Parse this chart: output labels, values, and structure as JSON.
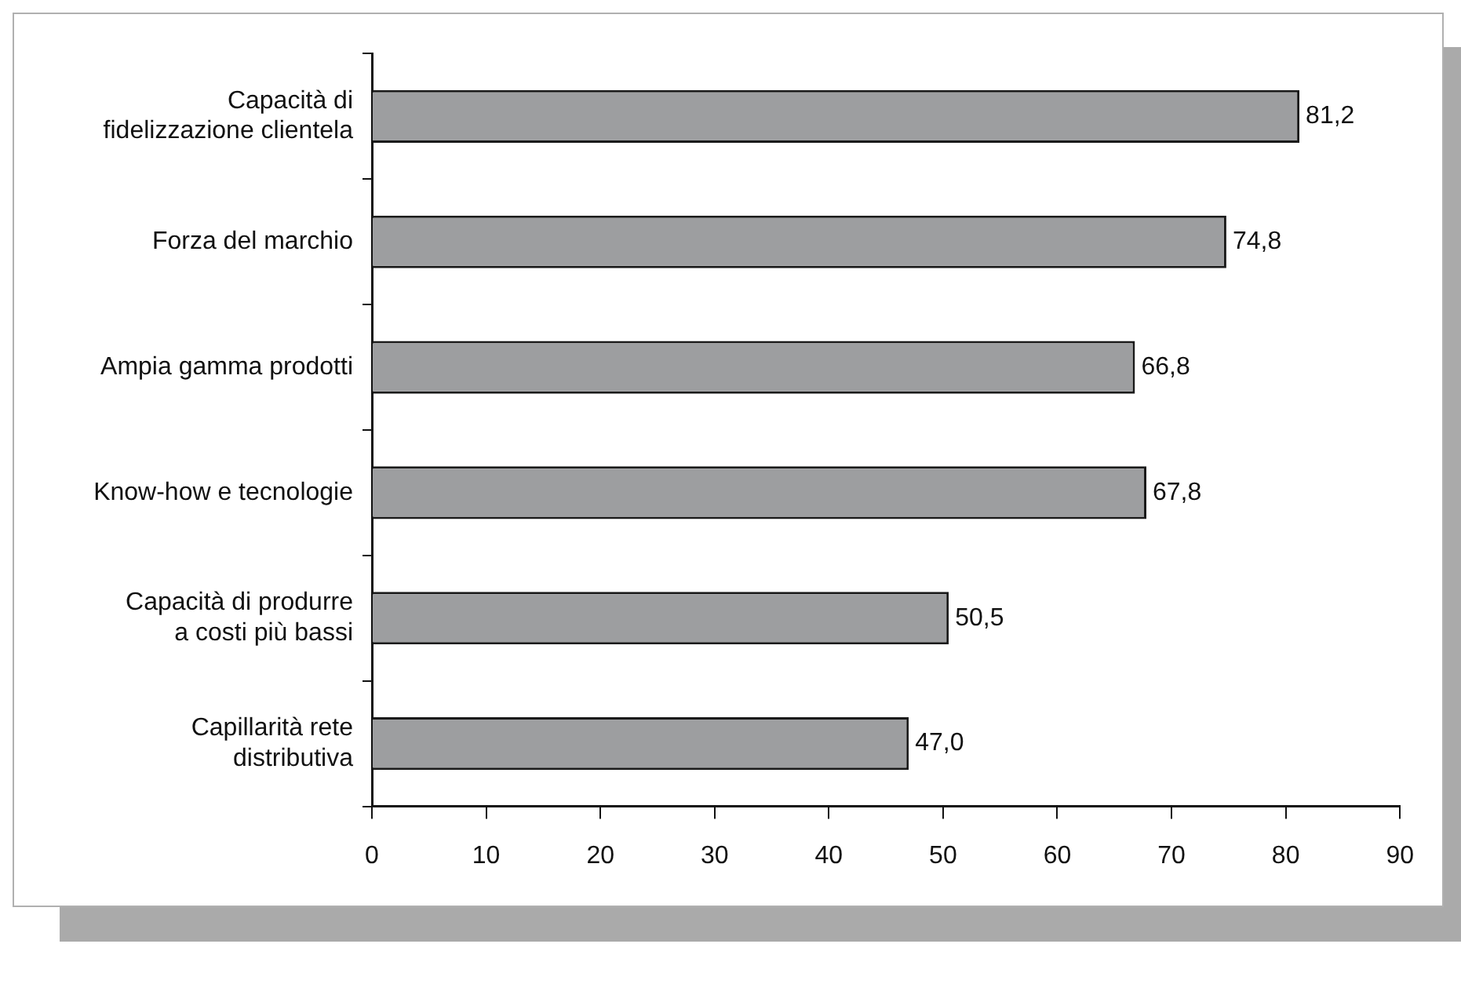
{
  "chart_data": {
    "type": "bar",
    "orientation": "horizontal",
    "categories": [
      "Capacità di\nfidelizzazione clientela",
      "Forza del marchio",
      "Ampia gamma prodotti",
      "Know-how e tecnologie",
      "Capacità di produrre\na costi più bassi",
      "Capillarità rete\ndistributiva"
    ],
    "values": [
      81.2,
      74.8,
      66.8,
      67.8,
      50.5,
      47.0
    ],
    "value_labels": [
      "81,2",
      "74,8",
      "66,8",
      "67,8",
      "50,5",
      "47,0"
    ],
    "color": "#9d9ea0",
    "xlim": [
      0,
      90
    ],
    "xticks": [
      0,
      10,
      20,
      30,
      40,
      50,
      60,
      70,
      80,
      90
    ],
    "grid": false,
    "legend": false
  }
}
